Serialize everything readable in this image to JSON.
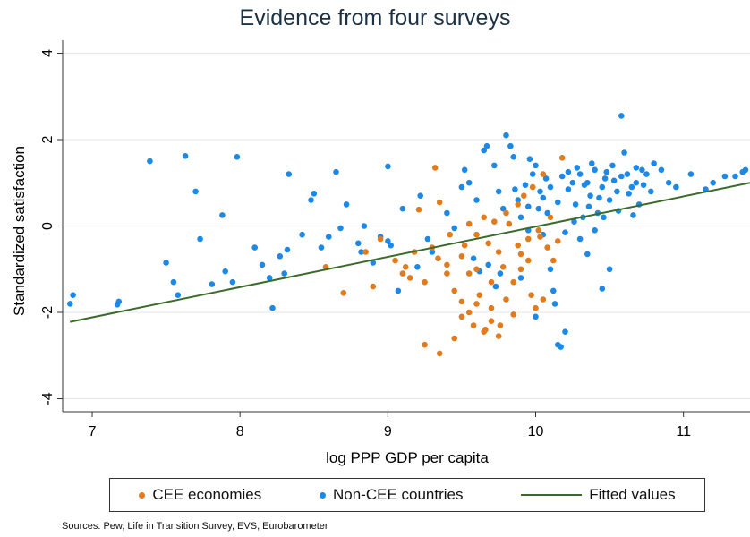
{
  "chart_data": {
    "type": "scatter",
    "title": "Evidence from four surveys",
    "xlabel": "log PPP GDP per capita",
    "ylabel": "Standardized satisfaction",
    "xlim": [
      6.8,
      11.45
    ],
    "ylim": [
      -4.3,
      4.3
    ],
    "xticks": [
      7,
      8,
      9,
      10,
      11
    ],
    "yticks": [
      -4,
      -2,
      0,
      2,
      4
    ],
    "grid": true,
    "legend_position": "bottom",
    "colors": {
      "cee": "#e07b1e",
      "noncee": "#1e88e5",
      "fit": "#3b6b2a",
      "grid": "#e6e6e6",
      "title": "#1c3144"
    },
    "fitted_line": {
      "name": "Fitted values",
      "x": [
        6.85,
        11.45
      ],
      "y": [
        -2.22,
        1.0
      ]
    },
    "series": [
      {
        "name": "CEE economies",
        "points": [
          [
            9.32,
            1.35
          ],
          [
            9.21,
            0.38
          ],
          [
            9.35,
            0.55
          ],
          [
            8.95,
            -0.3
          ],
          [
            8.85,
            -0.6
          ],
          [
            9.05,
            -0.8
          ],
          [
            9.15,
            -1.2
          ],
          [
            9.25,
            -1.3
          ],
          [
            8.9,
            -1.4
          ],
          [
            9.4,
            -0.9
          ],
          [
            9.5,
            -0.7
          ],
          [
            9.55,
            -1.1
          ],
          [
            9.45,
            -1.5
          ],
          [
            9.6,
            -1.8
          ],
          [
            9.5,
            -2.1
          ],
          [
            9.58,
            -2.3
          ],
          [
            9.65,
            -2.45
          ],
          [
            9.7,
            -2.2
          ],
          [
            9.75,
            -2.55
          ],
          [
            9.25,
            -2.75
          ],
          [
            9.35,
            -2.95
          ],
          [
            9.45,
            -2.6
          ],
          [
            9.55,
            -2.0
          ],
          [
            9.62,
            -1.6
          ],
          [
            9.7,
            -1.9
          ],
          [
            9.8,
            -1.7
          ],
          [
            9.85,
            -1.3
          ],
          [
            9.9,
            -1.0
          ],
          [
            9.95,
            -0.8
          ],
          [
            9.75,
            -0.6
          ],
          [
            9.68,
            -0.4
          ],
          [
            9.6,
            -0.2
          ],
          [
            9.72,
            0.1
          ],
          [
            9.8,
            0.3
          ],
          [
            9.88,
            0.5
          ],
          [
            9.92,
            0.7
          ],
          [
            9.98,
            0.9
          ],
          [
            10.05,
            1.2
          ],
          [
            10.18,
            1.58
          ],
          [
            10.1,
            0.2
          ],
          [
            10.02,
            -0.1
          ],
          [
            9.95,
            -0.3
          ],
          [
            10.05,
            -1.7
          ],
          [
            10.0,
            -1.9
          ],
          [
            9.97,
            -1.6
          ],
          [
            9.85,
            -2.05
          ],
          [
            9.78,
            -0.95
          ],
          [
            9.52,
            -0.45
          ],
          [
            9.42,
            -0.2
          ],
          [
            9.3,
            -0.5
          ],
          [
            9.18,
            -0.6
          ],
          [
            9.12,
            -0.95
          ],
          [
            8.7,
            -1.55
          ],
          [
            8.58,
            -0.95
          ],
          [
            9.1,
            -1.1
          ],
          [
            9.55,
            0.05
          ],
          [
            9.65,
            0.2
          ],
          [
            9.82,
            0.05
          ],
          [
            10.08,
            -0.5
          ],
          [
            10.12,
            -0.8
          ],
          [
            10.15,
            -0.35
          ],
          [
            9.7,
            -1.3
          ],
          [
            9.6,
            -1.0
          ],
          [
            9.4,
            -1.1
          ],
          [
            9.34,
            -0.75
          ],
          [
            9.88,
            -0.45
          ],
          [
            10.03,
            -0.25
          ],
          [
            9.9,
            -0.65
          ],
          [
            9.5,
            -1.75
          ],
          [
            9.66,
            -2.4
          ],
          [
            9.76,
            -2.3
          ]
        ]
      },
      {
        "name": "Non-CEE countries",
        "points": [
          [
            6.85,
            -1.8
          ],
          [
            6.87,
            -1.6
          ],
          [
            7.18,
            -1.75
          ],
          [
            7.17,
            -1.82
          ],
          [
            7.39,
            1.5
          ],
          [
            7.63,
            1.62
          ],
          [
            7.5,
            -0.85
          ],
          [
            7.55,
            -1.3
          ],
          [
            7.58,
            -1.6
          ],
          [
            7.7,
            0.8
          ],
          [
            7.73,
            -0.3
          ],
          [
            7.81,
            -1.35
          ],
          [
            7.9,
            -1.05
          ],
          [
            7.95,
            -1.3
          ],
          [
            7.98,
            1.6
          ],
          [
            7.88,
            0.25
          ],
          [
            8.1,
            -0.5
          ],
          [
            8.15,
            -0.9
          ],
          [
            8.2,
            -1.2
          ],
          [
            8.22,
            -1.9
          ],
          [
            8.27,
            -0.7
          ],
          [
            8.32,
            -0.55
          ],
          [
            8.33,
            1.2
          ],
          [
            8.3,
            -1.1
          ],
          [
            8.42,
            -0.2
          ],
          [
            8.48,
            0.6
          ],
          [
            8.5,
            0.75
          ],
          [
            8.55,
            -0.5
          ],
          [
            8.6,
            -0.25
          ],
          [
            8.65,
            1.25
          ],
          [
            8.68,
            -0.05
          ],
          [
            8.72,
            0.5
          ],
          [
            8.8,
            -0.4
          ],
          [
            8.82,
            -0.6
          ],
          [
            8.84,
            0.0
          ],
          [
            9.0,
            1.38
          ],
          [
            9.0,
            -0.35
          ],
          [
            9.1,
            0.4
          ],
          [
            9.22,
            0.7
          ],
          [
            9.27,
            -0.3
          ],
          [
            9.4,
            0.3
          ],
          [
            9.45,
            -0.05
          ],
          [
            9.5,
            0.9
          ],
          [
            9.52,
            1.3
          ],
          [
            9.55,
            1.0
          ],
          [
            9.6,
            0.6
          ],
          [
            9.65,
            1.75
          ],
          [
            9.67,
            1.85
          ],
          [
            9.72,
            1.4
          ],
          [
            9.75,
            0.8
          ],
          [
            9.78,
            0.4
          ],
          [
            9.8,
            2.1
          ],
          [
            9.83,
            1.85
          ],
          [
            9.85,
            1.6
          ],
          [
            9.88,
            0.6
          ],
          [
            9.9,
            0.2
          ],
          [
            9.93,
            0.95
          ],
          [
            9.95,
            -0.1
          ],
          [
            9.98,
            1.2
          ],
          [
            10.0,
            1.4
          ],
          [
            10.02,
            0.4
          ],
          [
            10.03,
            0.8
          ],
          [
            10.05,
            -0.2
          ],
          [
            10.07,
            1.1
          ],
          [
            10.08,
            0.3
          ],
          [
            10.1,
            0.9
          ],
          [
            10.12,
            -1.5
          ],
          [
            10.15,
            -2.75
          ],
          [
            10.17,
            -2.8
          ],
          [
            10.2,
            -2.45
          ],
          [
            10.22,
            1.25
          ],
          [
            10.25,
            1.0
          ],
          [
            10.27,
            0.5
          ],
          [
            10.3,
            1.2
          ],
          [
            10.32,
            0.2
          ],
          [
            10.35,
            1.0
          ],
          [
            10.37,
            0.7
          ],
          [
            10.4,
            1.3
          ],
          [
            10.42,
            0.3
          ],
          [
            10.45,
            0.9
          ],
          [
            10.47,
            1.1
          ],
          [
            10.5,
            0.6
          ],
          [
            10.52,
            1.4
          ],
          [
            10.55,
            0.8
          ],
          [
            10.58,
            2.55
          ],
          [
            10.6,
            1.7
          ],
          [
            10.62,
            1.2
          ],
          [
            10.65,
            0.9
          ],
          [
            10.68,
            1.0
          ],
          [
            10.7,
            0.5
          ],
          [
            10.72,
            1.3
          ],
          [
            10.75,
            1.2
          ],
          [
            10.78,
            0.8
          ],
          [
            10.8,
            1.45
          ],
          [
            10.85,
            1.3
          ],
          [
            10.9,
            1.0
          ],
          [
            10.95,
            0.9
          ],
          [
            11.05,
            1.2
          ],
          [
            11.15,
            0.85
          ],
          [
            11.2,
            1.0
          ],
          [
            11.28,
            1.15
          ],
          [
            11.35,
            1.15
          ],
          [
            11.4,
            1.25
          ],
          [
            11.42,
            1.3
          ],
          [
            9.68,
            -0.9
          ],
          [
            9.73,
            -1.4
          ],
          [
            9.76,
            -1.1
          ],
          [
            9.9,
            -1.2
          ],
          [
            10.0,
            -2.1
          ],
          [
            10.1,
            -1.0
          ],
          [
            10.13,
            -1.8
          ],
          [
            10.35,
            -0.65
          ],
          [
            10.45,
            -1.45
          ],
          [
            10.5,
            -1.0
          ],
          [
            9.58,
            -0.75
          ],
          [
            9.62,
            -1.05
          ],
          [
            9.3,
            -0.6
          ],
          [
            9.2,
            -0.95
          ],
          [
            9.07,
            -1.5
          ],
          [
            9.02,
            -0.45
          ],
          [
            8.95,
            -0.25
          ],
          [
            8.9,
            -0.85
          ],
          [
            10.26,
            0.1
          ],
          [
            10.36,
            0.45
          ],
          [
            10.46,
            0.2
          ],
          [
            10.56,
            0.35
          ],
          [
            10.66,
            0.25
          ],
          [
            10.15,
            0.55
          ],
          [
            10.05,
            0.65
          ],
          [
            10.22,
            0.85
          ],
          [
            10.33,
            0.95
          ],
          [
            10.43,
            0.65
          ],
          [
            10.53,
            1.05
          ],
          [
            10.63,
            0.75
          ],
          [
            10.73,
            0.95
          ],
          [
            10.18,
            1.15
          ],
          [
            10.28,
            1.35
          ],
          [
            10.38,
            1.45
          ],
          [
            10.48,
            1.25
          ],
          [
            10.58,
            1.15
          ],
          [
            10.68,
            1.35
          ],
          [
            10.2,
            -0.15
          ],
          [
            10.3,
            -0.3
          ],
          [
            10.4,
            -0.1
          ],
          [
            9.95,
            0.45
          ],
          [
            9.86,
            0.85
          ],
          [
            9.96,
            1.55
          ]
        ]
      }
    ]
  },
  "legend": {
    "cee": "CEE economies",
    "noncee": "Non-CEE countries",
    "fit": "Fitted values"
  },
  "source": "Sources: Pew, Life in Transition Survey, EVS, Eurobarometer"
}
